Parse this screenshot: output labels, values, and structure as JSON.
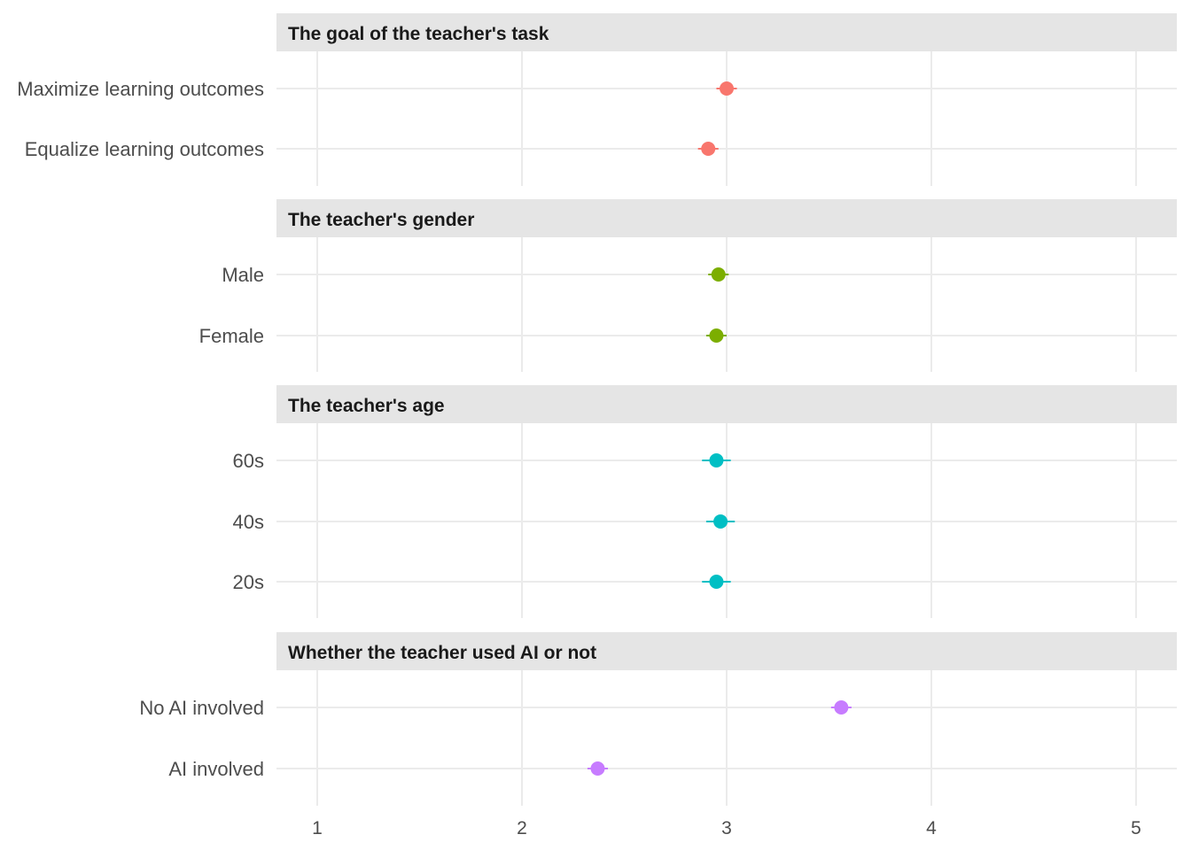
{
  "chart_data": {
    "type": "scatter",
    "subtype": "faceted dot plot with error bars",
    "title": "",
    "xlabel": "",
    "ylabel": "",
    "xlim": [
      0.85,
      5.2
    ],
    "x_ticks": [
      1,
      2,
      3,
      4,
      5
    ],
    "x_tick_labels": [
      "1",
      "2",
      "3",
      "4",
      "5"
    ],
    "grid": true,
    "legend": "none",
    "panels": [
      {
        "title": "The goal of the teacher's task",
        "color": "#F8766D",
        "points": [
          {
            "label": "Maximize learning outcomes",
            "value": 3.0,
            "low": 2.95,
            "high": 3.05
          },
          {
            "label": "Equalize learning outcomes",
            "value": 2.91,
            "low": 2.86,
            "high": 2.96
          }
        ]
      },
      {
        "title": "The teacher's gender",
        "color": "#7CAE00",
        "points": [
          {
            "label": "Male",
            "value": 2.96,
            "low": 2.91,
            "high": 3.01
          },
          {
            "label": "Female",
            "value": 2.95,
            "low": 2.9,
            "high": 3.0
          }
        ]
      },
      {
        "title": "The teacher's age",
        "color": "#00BFC4",
        "points": [
          {
            "label": "60s",
            "value": 2.95,
            "low": 2.88,
            "high": 3.02
          },
          {
            "label": "40s",
            "value": 2.97,
            "low": 2.9,
            "high": 3.04
          },
          {
            "label": "20s",
            "value": 2.95,
            "low": 2.88,
            "high": 3.02
          }
        ]
      },
      {
        "title": "Whether the teacher used AI or not",
        "color": "#C77CFF",
        "points": [
          {
            "label": "No AI involved",
            "value": 3.56,
            "low": 3.51,
            "high": 3.61
          },
          {
            "label": "AI involved",
            "value": 2.37,
            "low": 2.32,
            "high": 2.42
          }
        ]
      }
    ]
  }
}
